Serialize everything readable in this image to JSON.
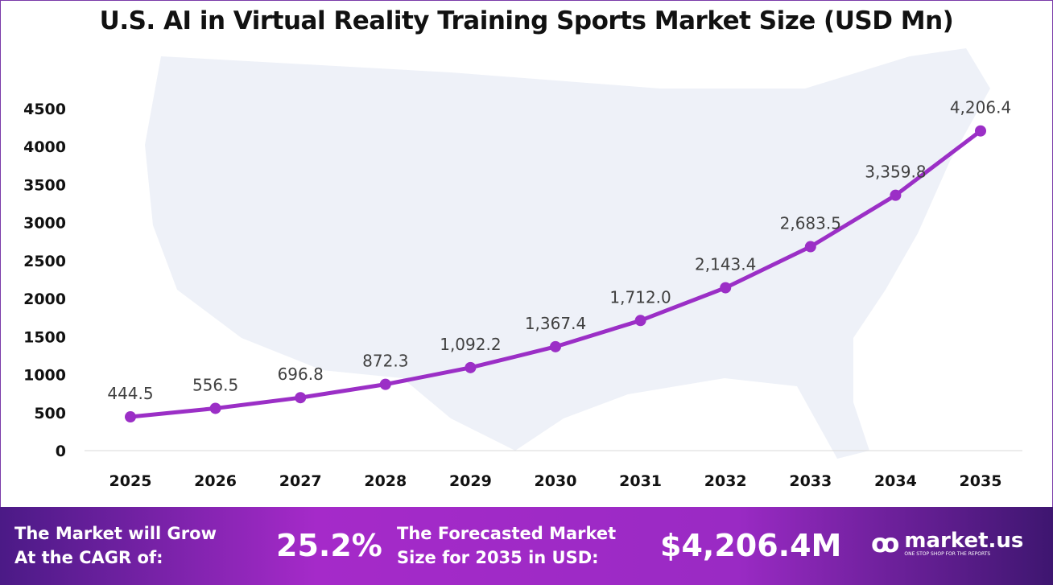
{
  "title": "U.S. AI in Virtual Reality Training Sports Market Size (USD Mn)",
  "chart_data": {
    "type": "line",
    "title": "U.S. AI in Virtual Reality Training Sports Market Size (USD Mn)",
    "categories": [
      "2025",
      "2026",
      "2027",
      "2028",
      "2029",
      "2030",
      "2031",
      "2032",
      "2033",
      "2034",
      "2035"
    ],
    "values": [
      444.5,
      556.5,
      696.8,
      872.3,
      1092.2,
      1367.4,
      1712.0,
      2143.4,
      2683.5,
      3359.8,
      4206.4
    ],
    "labels": [
      "444.5",
      "556.5",
      "696.8",
      "872.3",
      "1,092.2",
      "1,367.4",
      "1,712.0",
      "2,143.4",
      "2,683.5",
      "3,359.8",
      "4,206.4"
    ],
    "yticks": [
      "0",
      "500",
      "1000",
      "1500",
      "2000",
      "2500",
      "3000",
      "3500",
      "4000",
      "4500"
    ],
    "ylim": [
      0,
      4500
    ],
    "grid": false,
    "line_color": "#9b2fc6"
  },
  "banner": {
    "cagr_label_1": "The Market will Grow",
    "cagr_label_2": "At the CAGR of:",
    "cagr_value": "25.2%",
    "forecast_label_1": "The Forecasted Market",
    "forecast_label_2": "Size for 2035 in USD:",
    "forecast_value": "$4,206.4M",
    "logo_text": "market.us",
    "logo_tagline": "ONE STOP SHOP FOR THE REPORTS"
  }
}
